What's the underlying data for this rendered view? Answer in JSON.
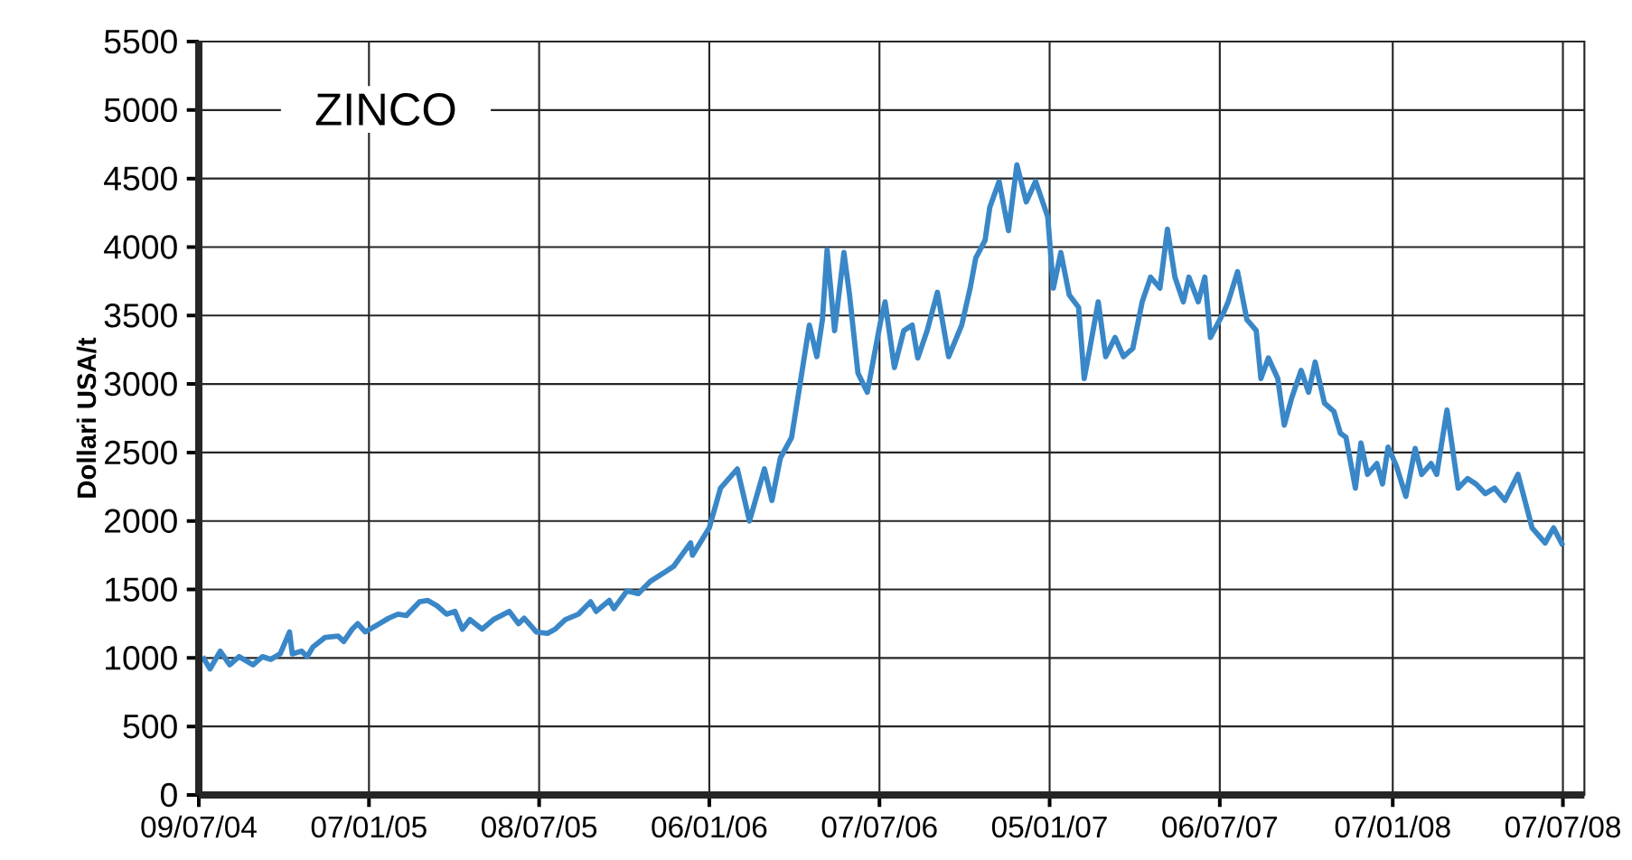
{
  "chart_data": {
    "type": "line",
    "title": "ZINCO",
    "ylabel": "Dollari USA/t",
    "xlim": [
      "2004-07-09",
      "2008-07-30"
    ],
    "ylim": [
      0,
      5500
    ],
    "xticks": [
      {
        "value": "2004-07-09",
        "label": "09/07/04"
      },
      {
        "value": "2005-01-07",
        "label": "07/01/05"
      },
      {
        "value": "2005-07-08",
        "label": "08/07/05"
      },
      {
        "value": "2006-01-06",
        "label": "06/01/06"
      },
      {
        "value": "2006-07-07",
        "label": "07/07/06"
      },
      {
        "value": "2007-01-05",
        "label": "05/01/07"
      },
      {
        "value": "2007-07-06",
        "label": "06/07/07"
      },
      {
        "value": "2008-01-07",
        "label": "07/01/08"
      },
      {
        "value": "2008-07-07",
        "label": "07/07/08"
      }
    ],
    "yticks": [
      0,
      500,
      1000,
      1500,
      2000,
      2500,
      3000,
      3500,
      4000,
      4500,
      5000,
      5500
    ],
    "grid": true,
    "marker": "none",
    "line_style": "solid",
    "series": [
      {
        "color": "#3a87c8",
        "x": [
          "2004-07-13",
          "2004-07-21",
          "2004-08-01",
          "2004-08-11",
          "2004-08-21",
          "2004-09-05",
          "2004-09-15",
          "2004-09-24",
          "2004-10-04",
          "2004-10-14",
          "2004-10-17",
          "2004-10-27",
          "2004-11-02",
          "2004-11-08",
          "2004-11-21",
          "2004-12-05",
          "2004-12-11",
          "2004-12-20",
          "2004-12-26",
          "2005-01-03",
          "2005-01-18",
          "2005-01-28",
          "2005-02-07",
          "2005-02-16",
          "2005-03-02",
          "2005-03-11",
          "2005-03-21",
          "2005-03-31",
          "2005-04-09",
          "2005-04-17",
          "2005-04-25",
          "2005-05-08",
          "2005-05-20",
          "2005-06-06",
          "2005-06-16",
          "2005-06-22",
          "2005-07-05",
          "2005-07-17",
          "2005-07-25",
          "2005-08-05",
          "2005-08-19",
          "2005-09-01",
          "2005-09-07",
          "2005-09-21",
          "2005-09-26",
          "2005-10-10",
          "2005-10-22",
          "2005-11-04",
          "2005-11-18",
          "2005-11-29",
          "2005-12-17",
          "2005-12-19",
          "2006-01-06",
          "2006-01-18",
          "2006-02-05",
          "2006-02-18",
          "2006-03-06",
          "2006-03-14",
          "2006-03-23",
          "2006-04-04",
          "2006-04-23",
          "2006-05-01",
          "2006-05-07",
          "2006-05-12",
          "2006-05-20",
          "2006-05-30",
          "2006-06-05",
          "2006-06-14",
          "2006-06-24",
          "2006-07-08",
          "2006-07-13",
          "2006-07-23",
          "2006-08-02",
          "2006-08-11",
          "2006-08-17",
          "2006-08-27",
          "2006-09-07",
          "2006-09-19",
          "2006-10-03",
          "2006-10-12",
          "2006-10-18",
          "2006-10-28",
          "2006-11-02",
          "2006-11-12",
          "2006-11-22",
          "2006-12-01",
          "2006-12-11",
          "2006-12-21",
          "2007-01-03",
          "2007-01-09",
          "2007-01-17",
          "2007-01-26",
          "2007-02-05",
          "2007-02-11",
          "2007-02-17",
          "2007-02-26",
          "2007-03-06",
          "2007-03-16",
          "2007-03-25",
          "2007-04-04",
          "2007-04-14",
          "2007-04-23",
          "2007-05-03",
          "2007-05-11",
          "2007-05-19",
          "2007-05-28",
          "2007-06-03",
          "2007-06-13",
          "2007-06-20",
          "2007-06-26",
          "2007-07-10",
          "2007-07-15",
          "2007-07-25",
          "2007-08-04",
          "2007-08-14",
          "2007-08-19",
          "2007-08-27",
          "2007-09-06",
          "2007-09-13",
          "2007-09-21",
          "2007-10-01",
          "2007-10-09",
          "2007-10-16",
          "2007-10-26",
          "2007-11-05",
          "2007-11-12",
          "2007-11-18",
          "2007-11-28",
          "2007-12-04",
          "2007-12-11",
          "2007-12-21",
          "2007-12-27",
          "2008-01-02",
          "2008-01-11",
          "2008-01-21",
          "2008-01-31",
          "2008-02-07",
          "2008-02-17",
          "2008-02-23",
          "2008-03-05",
          "2008-03-17",
          "2008-03-27",
          "2008-04-05",
          "2008-04-15",
          "2008-04-25",
          "2008-05-06",
          "2008-05-20",
          "2008-06-04",
          "2008-06-18",
          "2008-06-27",
          "2008-07-07"
        ],
        "values": [
          1010,
          920,
          1050,
          950,
          1010,
          950,
          1010,
          990,
          1030,
          1190,
          1030,
          1050,
          1010,
          1080,
          1150,
          1160,
          1120,
          1210,
          1250,
          1190,
          1250,
          1290,
          1320,
          1310,
          1410,
          1420,
          1380,
          1320,
          1340,
          1210,
          1280,
          1210,
          1280,
          1340,
          1250,
          1290,
          1190,
          1180,
          1210,
          1280,
          1320,
          1410,
          1340,
          1420,
          1360,
          1490,
          1470,
          1560,
          1620,
          1670,
          1840,
          1750,
          1950,
          2240,
          2380,
          2000,
          2380,
          2150,
          2460,
          2610,
          3430,
          3200,
          3470,
          3980,
          3390,
          3960,
          3650,
          3080,
          2940,
          3450,
          3600,
          3120,
          3390,
          3430,
          3190,
          3390,
          3670,
          3200,
          3430,
          3700,
          3920,
          4050,
          4290,
          4480,
          4120,
          4600,
          4330,
          4480,
          4220,
          3700,
          3960,
          3650,
          3560,
          3040,
          3260,
          3600,
          3200,
          3340,
          3200,
          3260,
          3600,
          3780,
          3700,
          4130,
          3780,
          3600,
          3780,
          3600,
          3780,
          3340,
          3520,
          3600,
          3820,
          3470,
          3390,
          3040,
          3190,
          3040,
          2700,
          2900,
          3100,
          2940,
          3160,
          2860,
          2800,
          2640,
          2610,
          2240,
          2570,
          2340,
          2420,
          2270,
          2540,
          2400,
          2180,
          2530,
          2340,
          2420,
          2340,
          2810,
          2240,
          2310,
          2270,
          2200,
          2240,
          2150,
          2340,
          1950,
          1840,
          1950,
          1820
        ]
      }
    ]
  }
}
